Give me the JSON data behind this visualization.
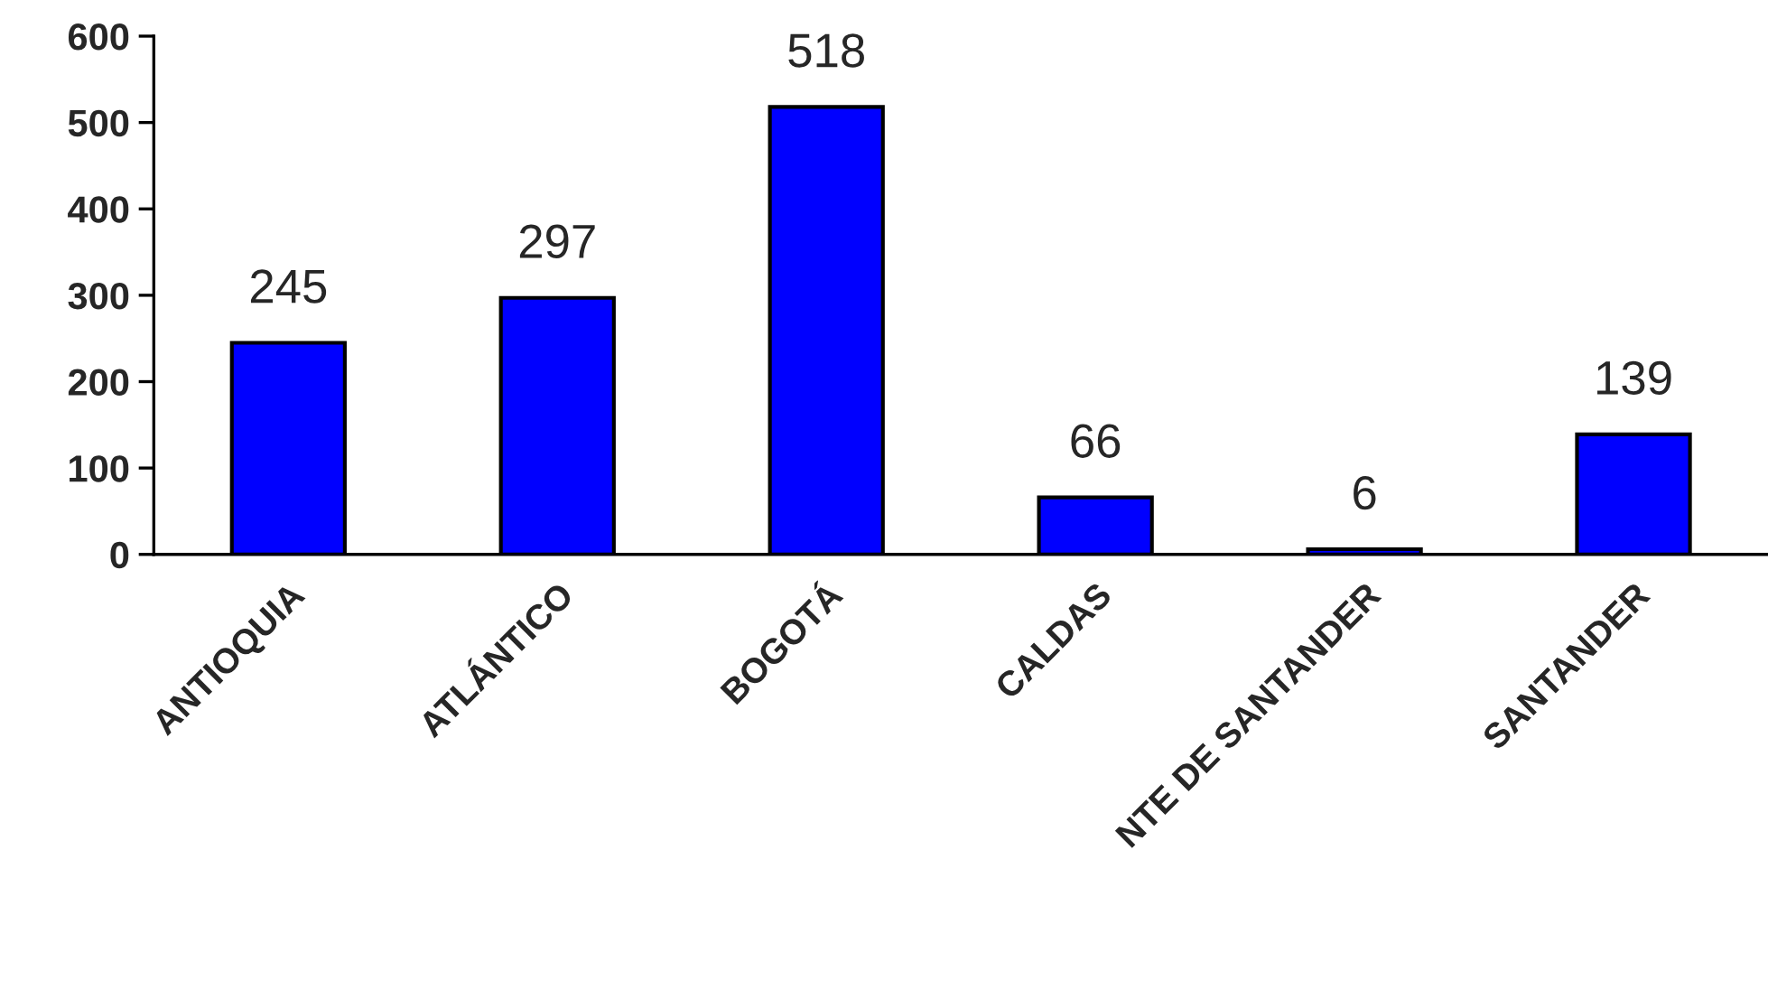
{
  "chart_data": {
    "type": "bar",
    "categories": [
      "ANTIOQUIA",
      "ATLÁNTICO",
      "BOGOTÁ",
      "CALDAS",
      "NTE DE SANTANDER",
      "SANTANDER"
    ],
    "values": [
      245,
      297,
      518,
      66,
      6,
      139
    ],
    "color": "#0000ff",
    "ylim": [
      0,
      600
    ],
    "yticks": [
      0,
      100,
      200,
      300,
      400,
      500,
      600
    ],
    "data_labels": true,
    "grid": false,
    "legend": false
  }
}
